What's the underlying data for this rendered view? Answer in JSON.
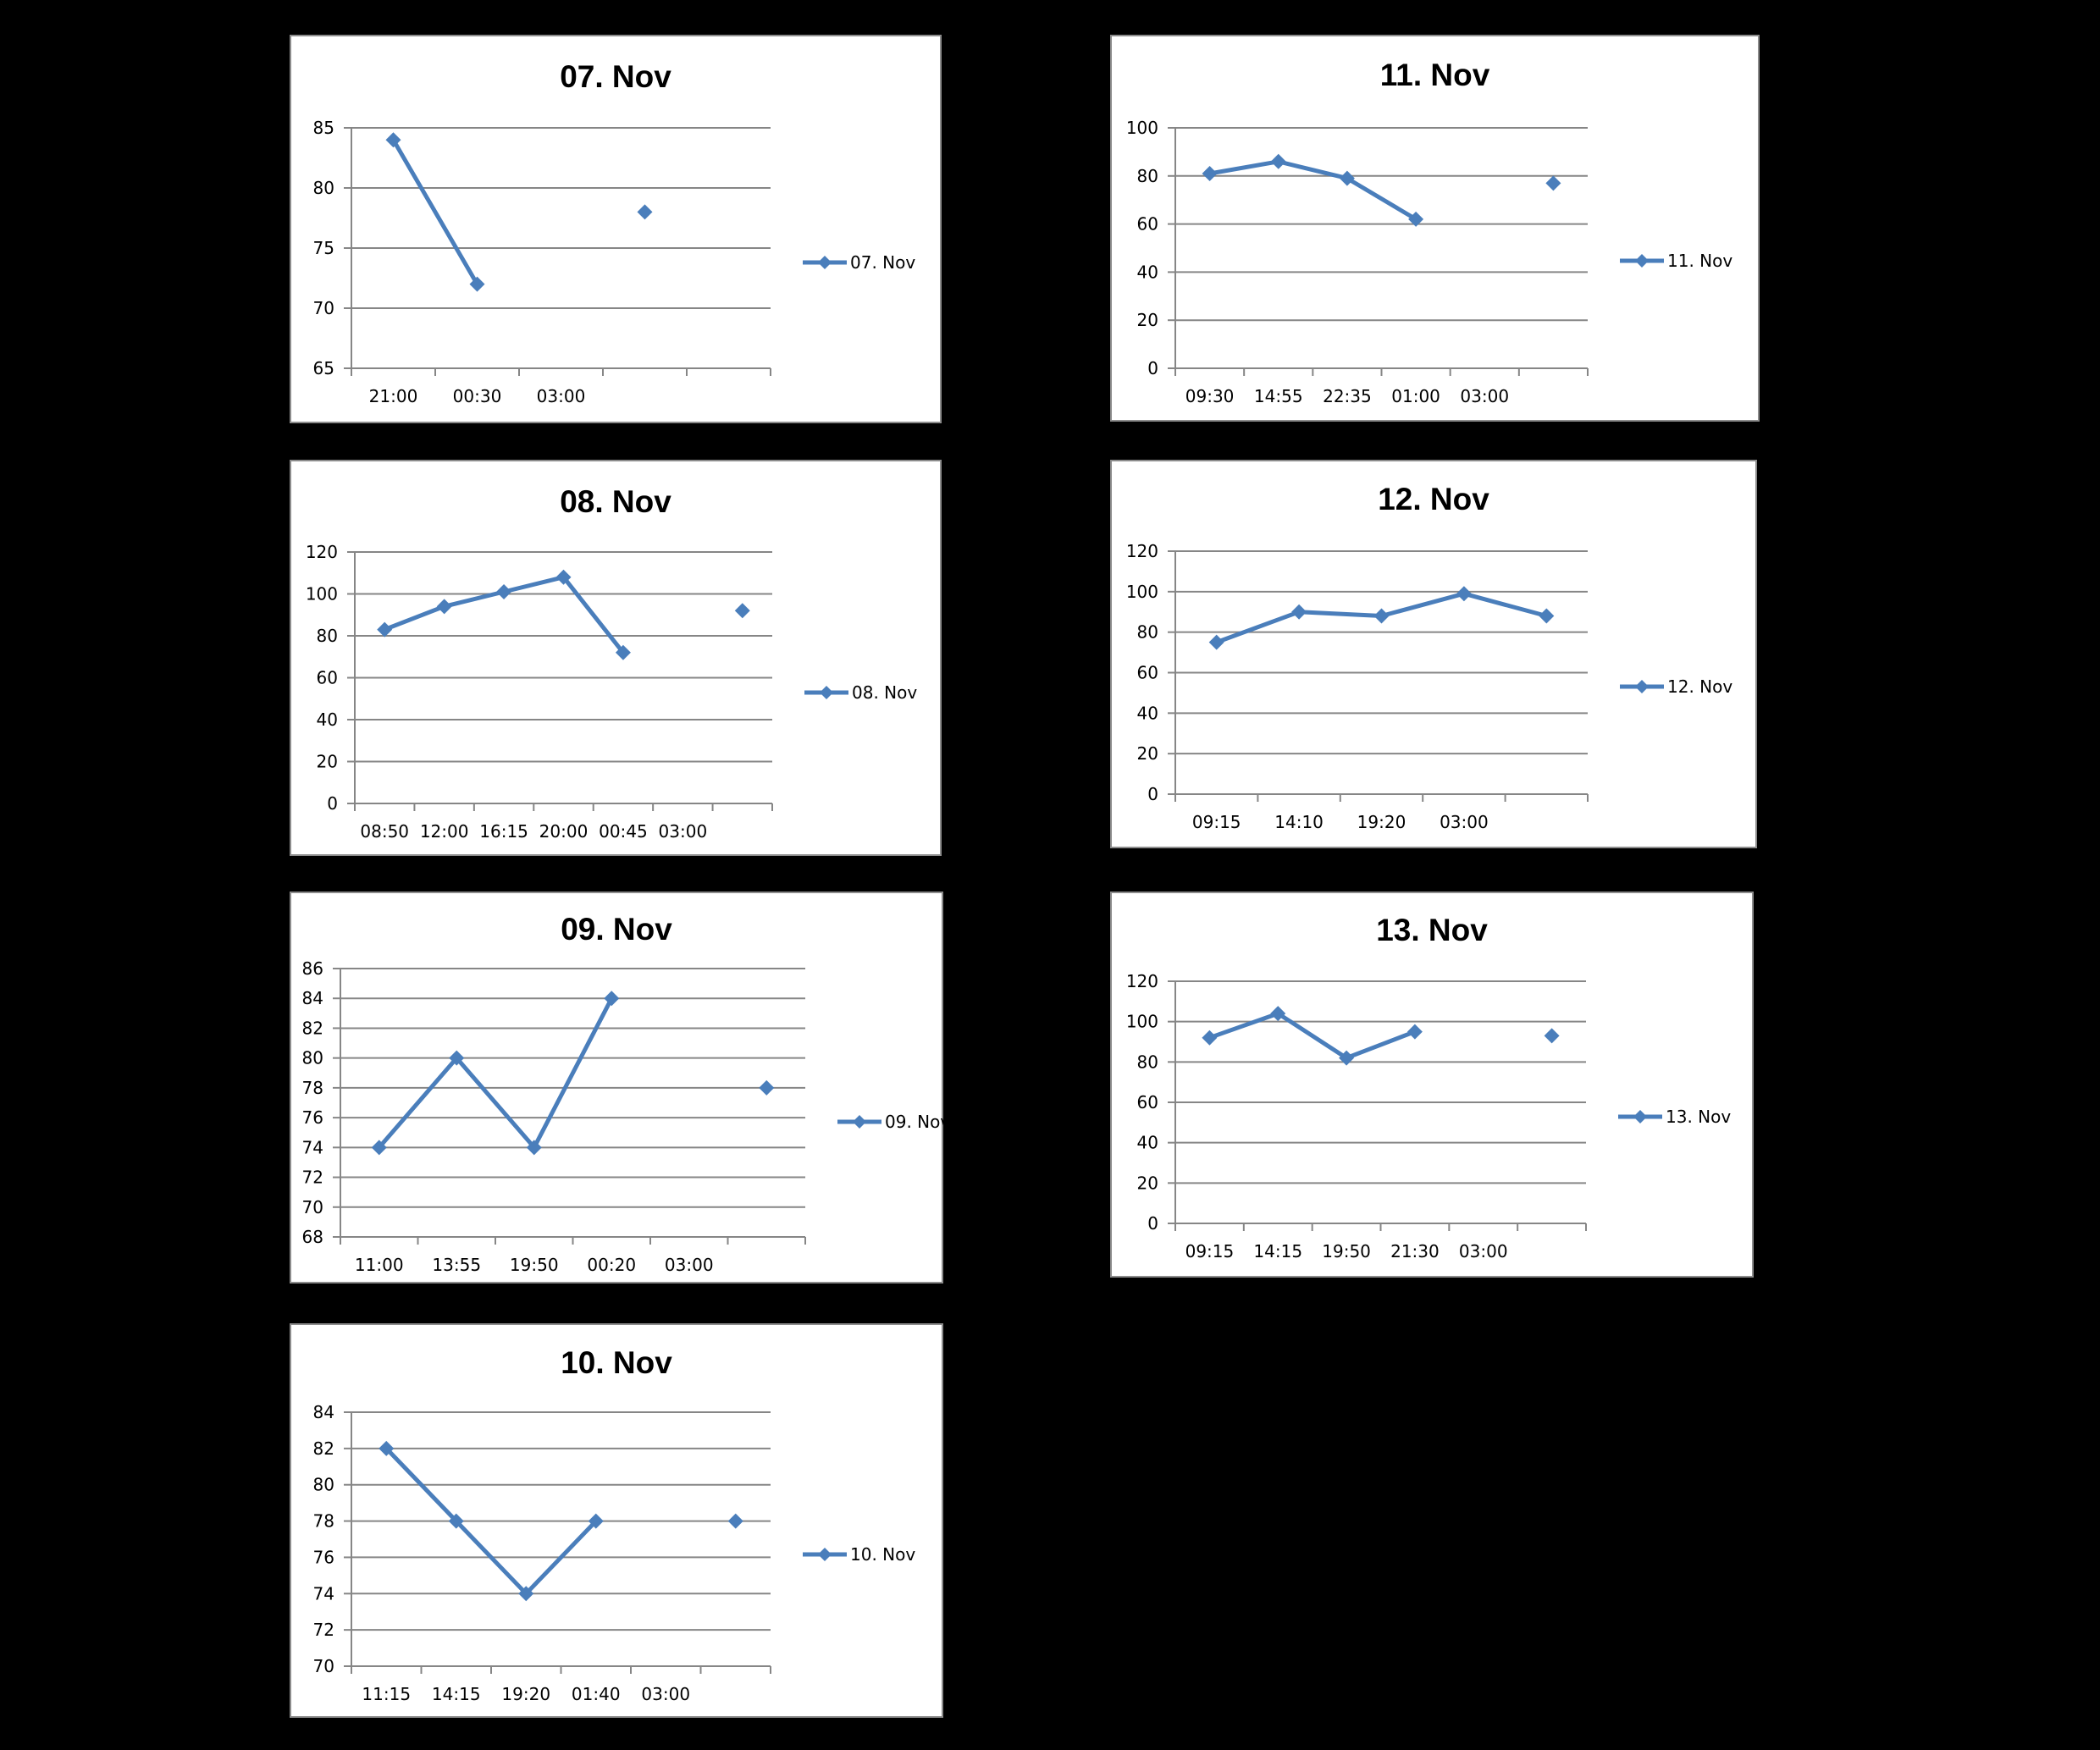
{
  "series_color": "#4a7ebb",
  "chart_data": [
    {
      "type": "line",
      "title": "07. Nov",
      "categories": [
        "21:00",
        "00:30",
        "03:00",
        "",
        ""
      ],
      "series": [
        {
          "name": "07. Nov",
          "values": [
            84,
            72,
            null,
            78,
            null
          ]
        }
      ],
      "ylim": [
        65,
        85
      ],
      "yticks": [
        65,
        70,
        75,
        80,
        85
      ],
      "xlabel": "",
      "ylabel": "",
      "grid": true,
      "legend": "right"
    },
    {
      "type": "line",
      "title": "11. Nov",
      "categories": [
        "09:30",
        "14:55",
        "22:35",
        "01:00",
        "03:00",
        ""
      ],
      "series": [
        {
          "name": "11. Nov",
          "values": [
            81,
            86,
            79,
            62,
            null,
            77
          ]
        }
      ],
      "ylim": [
        0,
        100
      ],
      "yticks": [
        0,
        20,
        40,
        60,
        80,
        100
      ],
      "xlabel": "",
      "ylabel": "",
      "grid": true,
      "legend": "right"
    },
    {
      "type": "line",
      "title": "08. Nov",
      "categories": [
        "08:50",
        "12:00",
        "16:15",
        "20:00",
        "00:45",
        "03:00",
        ""
      ],
      "series": [
        {
          "name": "08. Nov",
          "values": [
            83,
            94,
            101,
            108,
            72,
            null,
            92
          ]
        }
      ],
      "ylim": [
        0,
        120
      ],
      "yticks": [
        0,
        20,
        40,
        60,
        80,
        100,
        120
      ],
      "xlabel": "",
      "ylabel": "",
      "grid": true,
      "legend": "right"
    },
    {
      "type": "line",
      "title": "12. Nov",
      "categories": [
        "09:15",
        "14:10",
        "19:20",
        "03:00",
        ""
      ],
      "series": [
        {
          "name": "12. Nov",
          "values": [
            75,
            90,
            88,
            99,
            88
          ]
        }
      ],
      "ylim": [
        0,
        120
      ],
      "yticks": [
        0,
        20,
        40,
        60,
        80,
        100,
        120
      ],
      "xlabel": "",
      "ylabel": "",
      "grid": true,
      "legend": "right"
    },
    {
      "type": "line",
      "title": "09. Nov",
      "categories": [
        "11:00",
        "13:55",
        "19:50",
        "00:20",
        "03:00",
        ""
      ],
      "series": [
        {
          "name": "09. Nov",
          "values": [
            74,
            80,
            74,
            84,
            null,
            78
          ]
        }
      ],
      "ylim": [
        68,
        86
      ],
      "yticks": [
        68,
        70,
        72,
        74,
        76,
        78,
        80,
        82,
        84,
        86
      ],
      "xlabel": "",
      "ylabel": "",
      "grid": true,
      "legend": "right"
    },
    {
      "type": "line",
      "title": "13. Nov",
      "categories": [
        "09:15",
        "14:15",
        "19:50",
        "21:30",
        "03:00",
        ""
      ],
      "series": [
        {
          "name": "13. Nov",
          "values": [
            92,
            104,
            82,
            95,
            null,
            93
          ]
        }
      ],
      "ylim": [
        0,
        120
      ],
      "yticks": [
        0,
        20,
        40,
        60,
        80,
        100,
        120
      ],
      "xlabel": "",
      "ylabel": "",
      "grid": true,
      "legend": "right"
    },
    {
      "type": "line",
      "title": "10. Nov",
      "categories": [
        "11:15",
        "14:15",
        "19:20",
        "01:40",
        "03:00",
        ""
      ],
      "series": [
        {
          "name": "10. Nov",
          "values": [
            82,
            78,
            74,
            78,
            null,
            78
          ]
        }
      ],
      "ylim": [
        70,
        84
      ],
      "yticks": [
        70,
        72,
        74,
        76,
        78,
        80,
        82,
        84
      ],
      "xlabel": "",
      "ylabel": "",
      "grid": true,
      "legend": "right"
    }
  ]
}
